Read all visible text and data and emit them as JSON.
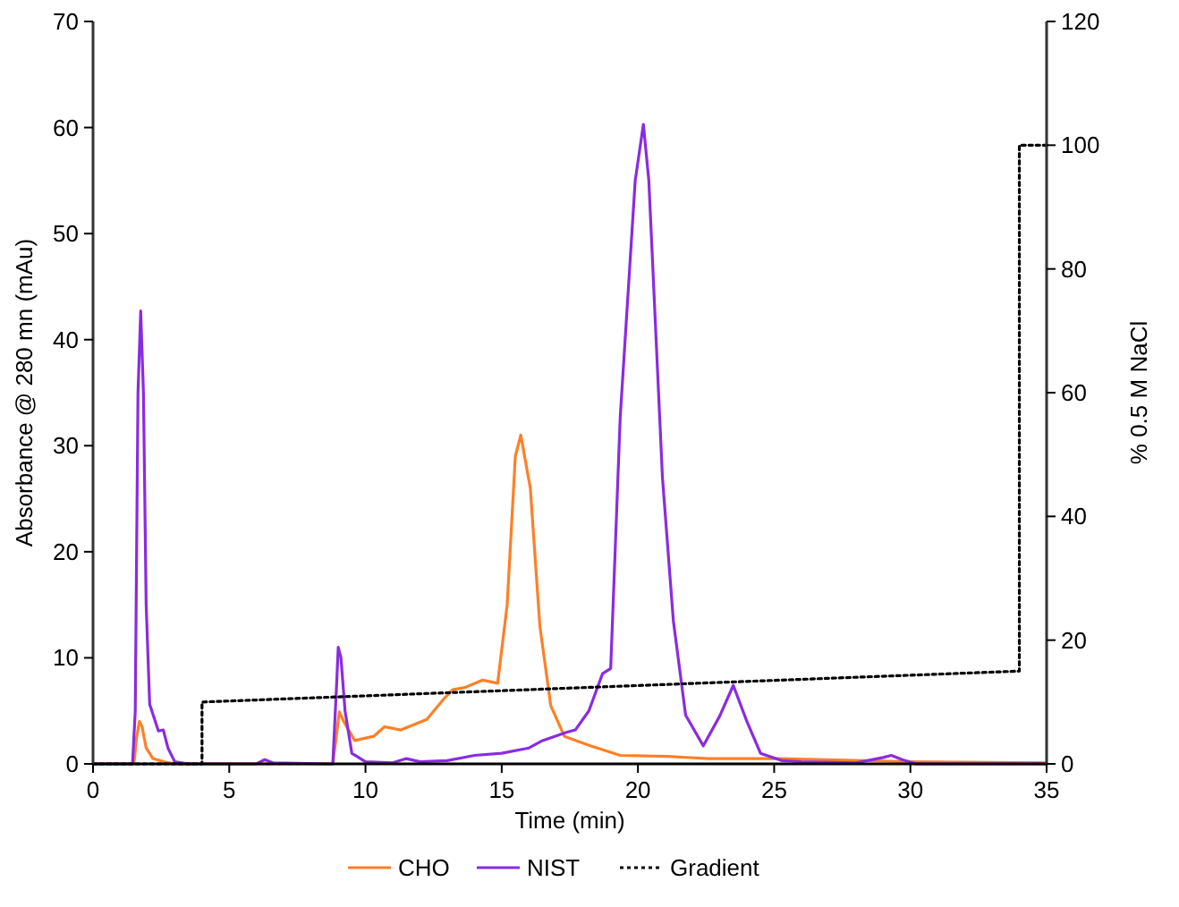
{
  "chart_data": {
    "type": "line",
    "xlabel": "Time (min)",
    "ylabel": "Absorbance @ 280 mn (mAu)",
    "y2label": "% 0.5 M NaCl",
    "xlim": [
      0,
      35
    ],
    "xticks": [
      0,
      5,
      10,
      15,
      20,
      25,
      30,
      35
    ],
    "ylim": [
      0,
      70
    ],
    "yticks": [
      0,
      10,
      20,
      30,
      40,
      50,
      60,
      70
    ],
    "y2lim": [
      0,
      120
    ],
    "y2ticks": [
      0,
      20,
      40,
      60,
      80,
      100,
      120
    ],
    "legend": "bottom",
    "grid": false,
    "series": [
      {
        "name": "CHO",
        "color": "#ff7f27",
        "line_style": "solid",
        "x": [
          0,
          1.5,
          1.6,
          1.7,
          1.8,
          1.95,
          2.2,
          2.6,
          3,
          8.8,
          8.95,
          9.04,
          9.2,
          9.6,
          10.3,
          10.7,
          11.3,
          12.25,
          12.9,
          13.2,
          13.65,
          14.3,
          14.85,
          15.2,
          15.5,
          15.7,
          16.05,
          16.4,
          16.8,
          17.3,
          18.25,
          19.35,
          21.1,
          22.6,
          25.2,
          30,
          35
        ],
        "values": [
          0,
          0,
          2.5,
          4,
          3.5,
          1.5,
          0.5,
          0.2,
          0,
          0,
          3,
          4.9,
          4,
          2.2,
          2.6,
          3.5,
          3.2,
          4.2,
          6.2,
          7,
          7.2,
          7.9,
          7.6,
          15,
          29,
          31,
          26,
          13,
          5.5,
          2.6,
          1.7,
          0.8,
          0.7,
          0.5,
          0.5,
          0.2,
          0.1
        ]
      },
      {
        "name": "NIST",
        "color": "#8a2be2",
        "line_style": "solid",
        "x": [
          0,
          1.45,
          1.55,
          1.65,
          1.75,
          1.85,
          1.95,
          2.08,
          2.4,
          2.58,
          2.75,
          3,
          3.5,
          6,
          6.3,
          6.6,
          8.8,
          8.95,
          9.0,
          9.1,
          9.25,
          9.5,
          10,
          11,
          11.5,
          12,
          13,
          14,
          15,
          16,
          16.5,
          17.4,
          17.7,
          18.2,
          18.7,
          19,
          19.35,
          19.9,
          20.2,
          20.4,
          20.9,
          21.3,
          21.75,
          22.4,
          23,
          23.5,
          24,
          24.5,
          25.3,
          26,
          28,
          29,
          29.3,
          29.7,
          30.2,
          35
        ],
        "values": [
          0,
          0,
          5,
          35,
          42.7,
          35,
          15,
          5.6,
          3.1,
          3.2,
          1.5,
          0.2,
          0,
          0,
          0.4,
          0.1,
          0,
          8,
          11,
          10,
          5,
          1,
          0.2,
          0.1,
          0.5,
          0.2,
          0.3,
          0.8,
          1,
          1.5,
          2.2,
          3,
          3.2,
          5,
          8.5,
          9,
          32.7,
          55,
          60.3,
          55,
          27,
          13.5,
          4.6,
          1.7,
          4.5,
          7.4,
          4,
          1,
          0.3,
          0.2,
          0.1,
          0.6,
          0.8,
          0.4,
          0,
          0
        ]
      },
      {
        "name": "Gradient",
        "color": "#000000",
        "axis": "y2",
        "line_style": "dotted",
        "x": [
          0,
          4,
          4,
          34,
          34,
          35
        ],
        "values": [
          0,
          0,
          10,
          15,
          100,
          100
        ]
      }
    ]
  }
}
